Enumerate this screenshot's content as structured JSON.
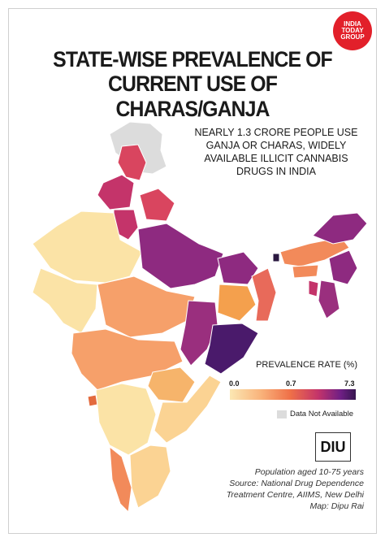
{
  "brand": {
    "logo_line1": "INDIA",
    "logo_line2": "TODAY",
    "logo_line3": "GROUP",
    "color": "#e2202a"
  },
  "title_line1": "STATE-WISE PREVALENCE OF",
  "title_line2": "CURRENT USE OF CHARAS/GANJA",
  "subtitle_line1": "NEARLY 1.3 CRORE PEOPLE USE",
  "subtitle_line2": "GANJA OR CHARAS, WIDELY",
  "subtitle_line3": "AVAILABLE ILLICIT CANNABIS",
  "subtitle_line4": "DRUGS IN INDIA",
  "legend": {
    "title": "PREVALENCE RATE (%)",
    "min": "0.0",
    "mid": "0.7",
    "max": "7.3",
    "na_label": "Data Not Available",
    "na_color": "#dcdcdc"
  },
  "diu_logo": "DIU",
  "source_line1": "Population aged 10-75 years",
  "source_line2": "Source: National Drug Dependence",
  "source_line3": "Treatment Centre, AIIMS, New Delhi",
  "source_line4": "Map: Dipu Rai",
  "palette": {
    "lowest": "#fbe7b3",
    "low": "#f9b27a",
    "mid": "#ef7048",
    "high": "#c4346a",
    "higher": "#8e2a80",
    "highest": "#4a1a6b"
  }
}
